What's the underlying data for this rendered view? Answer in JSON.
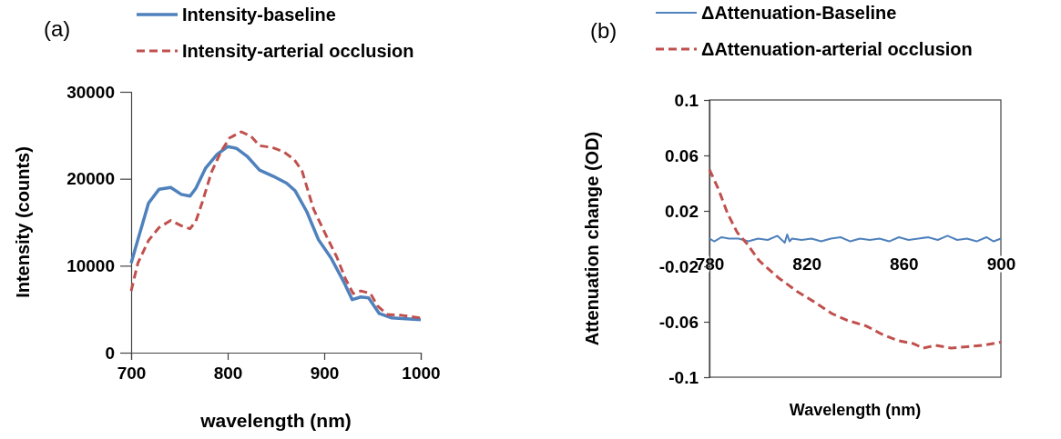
{
  "chart_data": [
    {
      "type": "line",
      "xlabel": "wavelength (nm)",
      "ylabel": "Intensity (counts)",
      "annotations": [
        "(a)"
      ],
      "xlim": [
        700,
        1000
      ],
      "xticks": [
        700,
        800,
        900,
        1000
      ],
      "ylim": [
        0,
        30000
      ],
      "yticks": [
        0,
        10000,
        20000,
        30000
      ],
      "legend": "top",
      "grid": false,
      "series": [
        {
          "name": "Intensity-baseline",
          "color": "#4f81bd",
          "line_style": "solid",
          "x": [
            700,
            707,
            718,
            729,
            741,
            752,
            761,
            767,
            777,
            789,
            800,
            809,
            820,
            833,
            847,
            861,
            870,
            882,
            894,
            907,
            920,
            929,
            938,
            946,
            957,
            970,
            985,
            1000
          ],
          "values": [
            10300,
            13000,
            17200,
            18800,
            19000,
            18200,
            18000,
            18900,
            21200,
            22800,
            23700,
            23500,
            22600,
            21000,
            20300,
            19500,
            18600,
            16200,
            13000,
            10900,
            8200,
            6100,
            6400,
            6300,
            4500,
            4000,
            3900,
            3800
          ]
        },
        {
          "name": "Intensity-arterial occlusion",
          "color": "#c0504d",
          "line_style": "dashed",
          "x": [
            700,
            707,
            718,
            729,
            741,
            752,
            761,
            767,
            774,
            783,
            793,
            802,
            814,
            824,
            833,
            846,
            858,
            869,
            877,
            889,
            901,
            913,
            922,
            930,
            938,
            948,
            955,
            965,
            980,
            1000
          ],
          "values": [
            7100,
            10300,
            12900,
            14400,
            15200,
            14600,
            14250,
            15100,
            17400,
            20700,
            23100,
            24700,
            25400,
            24900,
            23800,
            23600,
            23100,
            22200,
            20900,
            16500,
            13700,
            11000,
            8500,
            6800,
            7100,
            6800,
            5400,
            4400,
            4300,
            4000
          ]
        }
      ]
    },
    {
      "type": "line",
      "xlabel": "Wavelength  (nm)",
      "ylabel": "Attenuation change (OD)",
      "annotations": [
        "(b)"
      ],
      "xlim": [
        780,
        900
      ],
      "xticks": [
        780,
        820,
        860,
        900
      ],
      "ylim": [
        -0.1,
        0.1
      ],
      "yticks": [
        0.1,
        0.06,
        0.02,
        -0.02,
        -0.06,
        -0.1
      ],
      "legend": "top",
      "grid": false,
      "series": [
        {
          "name": "ΔAttenuation-Baseline",
          "color": "#4f81bd",
          "line_style": "solid",
          "x": [
            780,
            782,
            785,
            788,
            792,
            796,
            800,
            804,
            808,
            811,
            812,
            813,
            814,
            818,
            822,
            826,
            830,
            834,
            838,
            842,
            846,
            850,
            854,
            858,
            862,
            866,
            870,
            874,
            878,
            882,
            886,
            890,
            894,
            897,
            900
          ],
          "values": [
            0,
            -0.002,
            0.001,
            0,
            0,
            -0.002,
            0,
            -0.001,
            0.002,
            -0.003,
            0.003,
            -0.002,
            0,
            -0.001,
            0,
            -0.002,
            0,
            0.001,
            -0.002,
            0,
            -0.001,
            0,
            -0.002,
            0.001,
            -0.001,
            0,
            0.001,
            -0.001,
            0.002,
            -0.001,
            0,
            -0.002,
            0.001,
            -0.002,
            0
          ]
        },
        {
          "name": "ΔAttenuation-arterial occlusion",
          "color": "#c0504d",
          "line_style": "dashed",
          "x": [
            780,
            783.6,
            787.5,
            791.4,
            795.3,
            800.5,
            808.2,
            816,
            822.5,
            830.3,
            836.7,
            844.5,
            851,
            857.5,
            864,
            868,
            873,
            879.5,
            886,
            892.5,
            900
          ],
          "values": [
            0.0498,
            0.036,
            0.018,
            0.0045,
            -0.0034,
            -0.016,
            -0.028,
            -0.038,
            -0.045,
            -0.054,
            -0.059,
            -0.063,
            -0.069,
            -0.0735,
            -0.0758,
            -0.079,
            -0.077,
            -0.079,
            -0.078,
            -0.077,
            -0.0747
          ]
        }
      ]
    }
  ]
}
